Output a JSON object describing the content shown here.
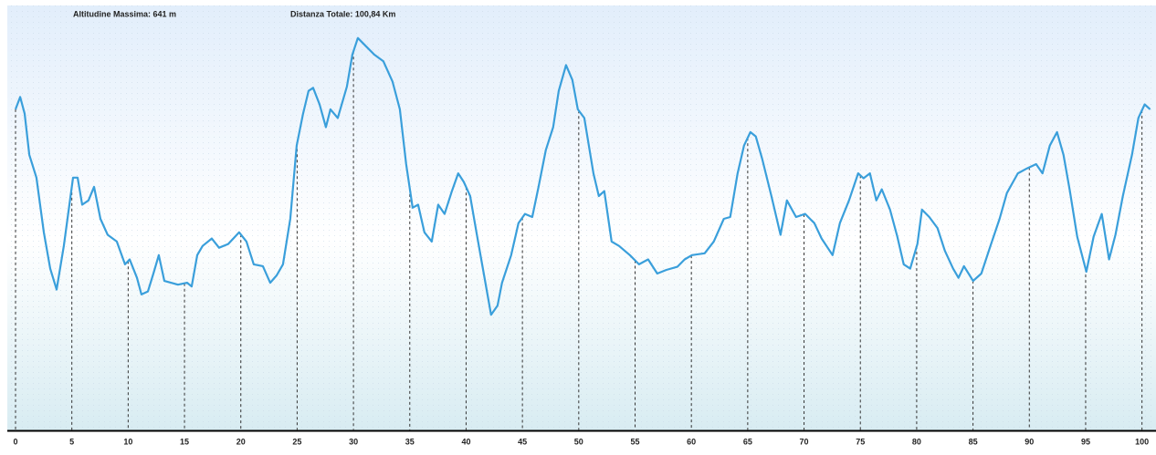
{
  "chart_data": {
    "type": "line",
    "titles": [
      "Altitudine Massima: 641 m",
      "Distanza Totale: 100,84 Km"
    ],
    "color": "#3a9fdb",
    "x": [
      0,
      0.41,
      0.81,
      1.22,
      1.86,
      2.51,
      3.08,
      3.65,
      4.29,
      5.11,
      5.51,
      5.92,
      6.48,
      6.97,
      7.54,
      8.18,
      8.99,
      9.72,
      10.13,
      10.78,
      11.18,
      11.75,
      12.24,
      12.72,
      13.21,
      14.42,
      15.24,
      15.64,
      16.13,
      16.61,
      17.42,
      18.07,
      18.88,
      19.85,
      20.5,
      21.15,
      21.96,
      22.61,
      23.18,
      23.74,
      24.39,
      24.96,
      25.53,
      26.01,
      26.42,
      26.99,
      27.55,
      27.96,
      28.61,
      29.42,
      29.9,
      30.39,
      31.04,
      31.85,
      32.66,
      33.47,
      34.12,
      34.68,
      35.25,
      35.74,
      36.3,
      36.95,
      37.52,
      38.09,
      38.74,
      39.3,
      39.79,
      40.36,
      40.92,
      41.57,
      42.22,
      42.79,
      43.19,
      44.0,
      44.65,
      45.22,
      45.87,
      46.43,
      47.08,
      47.73,
      48.22,
      48.87,
      49.43,
      49.92,
      50.49,
      51.3,
      51.78,
      52.27,
      52.92,
      53.57,
      54.54,
      55.35,
      56.16,
      56.97,
      57.78,
      58.75,
      59.4,
      60.05,
      61.18,
      61.99,
      62.88,
      63.45,
      64.1,
      64.67,
      65.24,
      65.72,
      66.29,
      67.1,
      67.91,
      68.48,
      69.29,
      70.1,
      70.91,
      71.56,
      72.53,
      73.18,
      73.99,
      74.8,
      75.28,
      75.85,
      76.42,
      76.9,
      77.63,
      78.28,
      78.85,
      79.42,
      80.06,
      80.47,
      81.12,
      81.85,
      82.5,
      83.23,
      83.71,
      84.2,
      85.01,
      85.74,
      86.55,
      87.36,
      88.01,
      88.98,
      89.79,
      90.6,
      91.17,
      91.82,
      92.46,
      93.03,
      93.6,
      94.25,
      95.06,
      95.71,
      96.43,
      97.08,
      97.65,
      98.3,
      99.11,
      99.68,
      100.24,
      100.73
    ],
    "values": [
      522,
      542,
      515,
      448,
      411,
      322,
      263,
      229,
      300,
      411,
      411,
      367,
      374,
      396,
      344,
      318,
      307,
      270,
      278,
      248,
      221,
      226,
      255,
      285,
      243,
      237,
      240,
      234,
      285,
      300,
      312,
      297,
      303,
      322,
      307,
      270,
      267,
      240,
      252,
      270,
      344,
      463,
      515,
      552,
      557,
      530,
      493,
      522,
      508,
      559,
      611,
      638,
      626,
      611,
      600,
      567,
      522,
      433,
      362,
      367,
      322,
      307,
      367,
      352,
      389,
      418,
      404,
      381,
      322,
      255,
      188,
      203,
      240,
      285,
      337,
      352,
      347,
      396,
      456,
      493,
      552,
      594,
      570,
      522,
      508,
      418,
      381,
      389,
      307,
      300,
      285,
      270,
      278,
      255,
      261,
      266,
      278,
      285,
      288,
      307,
      344,
      347,
      418,
      463,
      485,
      478,
      441,
      381,
      318,
      374,
      347,
      352,
      337,
      312,
      285,
      337,
      374,
      418,
      410,
      418,
      374,
      392,
      359,
      315,
      270,
      263,
      303,
      359,
      347,
      329,
      292,
      263,
      248,
      267,
      243,
      255,
      300,
      344,
      386,
      418,
      426,
      433,
      418,
      463,
      485,
      448,
      389,
      315,
      258,
      315,
      352,
      278,
      318,
      381,
      448,
      508,
      530,
      522
    ],
    "xlim": [
      0,
      100.84
    ],
    "ylim": [
      0,
      685
    ],
    "xticks": [
      0,
      5,
      10,
      15,
      20,
      25,
      30,
      35,
      40,
      45,
      50,
      55,
      60,
      65,
      70,
      75,
      80,
      85,
      90,
      95,
      100
    ]
  }
}
